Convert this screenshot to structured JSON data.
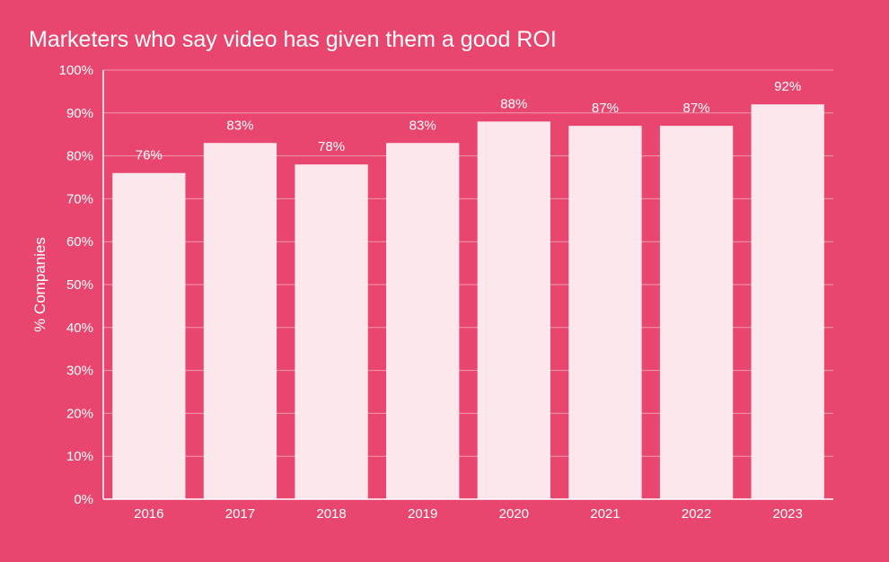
{
  "colors": {
    "background": "#e8466f",
    "bar": "#fce7ec",
    "text": "#ffffff",
    "grid": "#f49ab0",
    "axis": "#ffffff"
  },
  "chart_data": {
    "type": "bar",
    "title": "Marketers who say video has given them a good ROI",
    "xlabel": "",
    "ylabel": "% Companies",
    "categories": [
      "2016",
      "2017",
      "2018",
      "2019",
      "2020",
      "2021",
      "2022",
      "2023"
    ],
    "values": [
      76,
      83,
      78,
      83,
      88,
      87,
      87,
      92
    ],
    "data_labels": [
      "76%",
      "83%",
      "78%",
      "83%",
      "88%",
      "87%",
      "87%",
      "92%"
    ],
    "ylim": [
      0,
      100
    ],
    "yticks": [
      0,
      10,
      20,
      30,
      40,
      50,
      60,
      70,
      80,
      90,
      100
    ],
    "ytick_labels": [
      "0%",
      "10%",
      "20%",
      "30%",
      "40%",
      "50%",
      "60%",
      "70%",
      "80%",
      "90%",
      "100%"
    ],
    "grid": true,
    "legend": "none"
  }
}
